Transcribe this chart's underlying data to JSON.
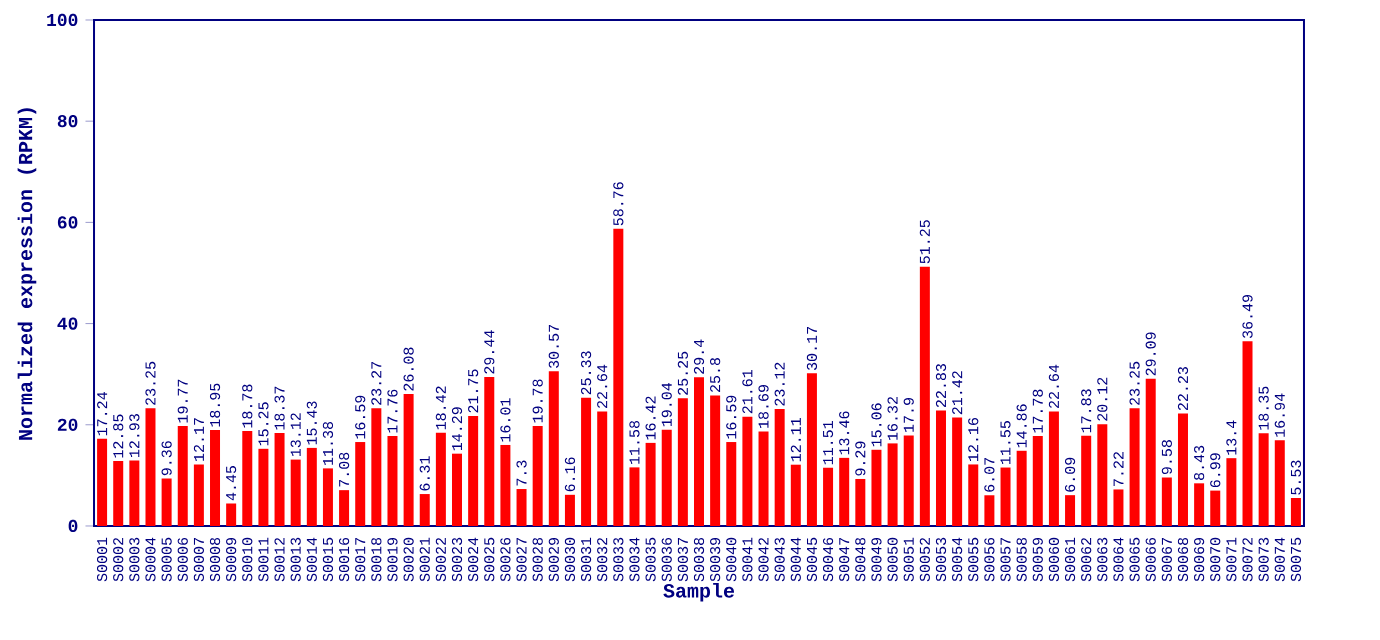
{
  "chart_data": {
    "type": "bar",
    "xlabel": "Sample",
    "ylabel": "Normalized expression (RPKM)",
    "categories": [
      "S0001",
      "S0002",
      "S0003",
      "S0004",
      "S0005",
      "S0006",
      "S0007",
      "S0008",
      "S0009",
      "S0010",
      "S0011",
      "S0012",
      "S0013",
      "S0014",
      "S0015",
      "S0016",
      "S0017",
      "S0018",
      "S0019",
      "S0020",
      "S0021",
      "S0022",
      "S0023",
      "S0024",
      "S0025",
      "S0026",
      "S0027",
      "S0028",
      "S0029",
      "S0030",
      "S0031",
      "S0032",
      "S0033",
      "S0034",
      "S0035",
      "S0036",
      "S0037",
      "S0038",
      "S0039",
      "S0040",
      "S0041",
      "S0042",
      "S0043",
      "S0044",
      "S0045",
      "S0046",
      "S0047",
      "S0048",
      "S0049",
      "S0050",
      "S0051",
      "S0052",
      "S0053",
      "S0054",
      "S0055",
      "S0056",
      "S0057",
      "S0058",
      "S0059",
      "S0060",
      "S0061",
      "S0062",
      "S0063",
      "S0064",
      "S0065",
      "S0066",
      "S0067",
      "S0068",
      "S0069",
      "S0070",
      "S0071",
      "S0072",
      "S0073",
      "S0074",
      "S0075"
    ],
    "values": [
      17.24,
      12.85,
      12.93,
      23.25,
      9.36,
      19.77,
      12.17,
      18.95,
      4.45,
      18.78,
      15.25,
      18.37,
      13.12,
      15.43,
      11.38,
      7.08,
      16.59,
      23.27,
      17.76,
      26.08,
      6.31,
      18.42,
      14.29,
      21.75,
      29.44,
      16.01,
      7.3,
      19.78,
      30.57,
      6.16,
      25.33,
      22.64,
      58.76,
      11.58,
      16.42,
      19.04,
      25.25,
      29.4,
      25.8,
      16.59,
      21.61,
      18.69,
      23.12,
      12.11,
      30.17,
      11.51,
      13.46,
      9.29,
      15.06,
      16.32,
      17.9,
      51.25,
      22.83,
      21.42,
      12.16,
      6.07,
      11.55,
      14.86,
      17.78,
      22.64,
      6.09,
      17.83,
      20.12,
      7.22,
      23.25,
      29.09,
      9.58,
      22.23,
      8.43,
      6.99,
      13.4,
      36.49,
      18.35,
      16.94,
      5.53
    ],
    "color": "#ff0000",
    "ylim": [
      0,
      100
    ],
    "yticks": [
      0,
      20,
      40,
      60,
      80,
      100
    ],
    "data_labels": true
  }
}
